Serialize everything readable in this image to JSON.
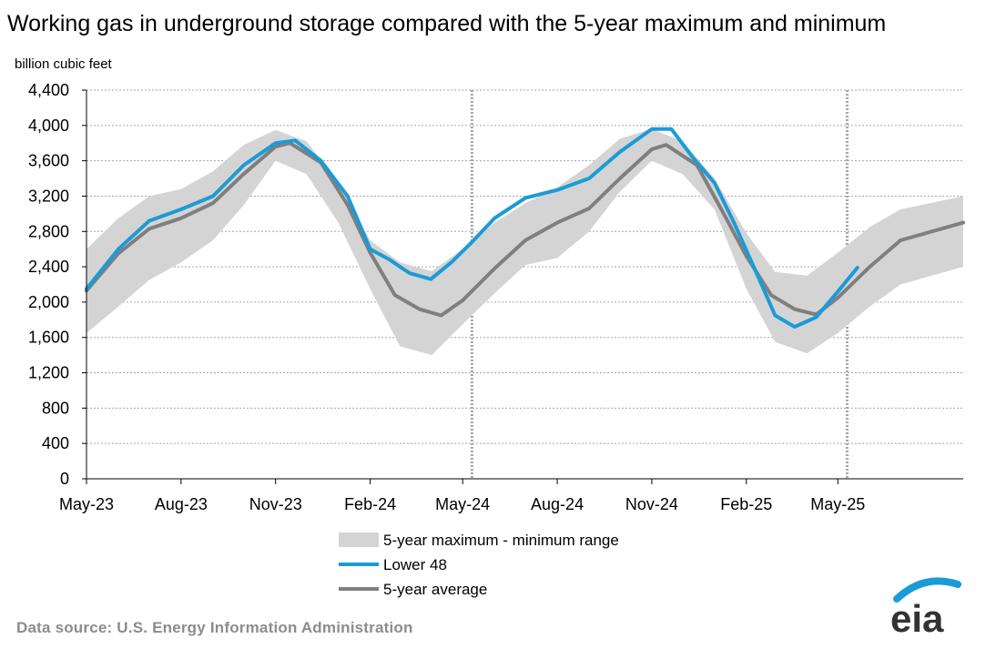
{
  "chart_data": {
    "type": "line",
    "title": "Working gas in underground storage compared with the 5-year maximum and minimum",
    "ylabel": "billion cubic feet",
    "xlabel": "",
    "ylim": [
      0,
      4400
    ],
    "y_ticks": [
      0,
      400,
      800,
      1200,
      1600,
      2000,
      2400,
      2800,
      3200,
      3600,
      4000,
      4400
    ],
    "y_tick_labels": [
      "0",
      "400",
      "800",
      "1,200",
      "1,600",
      "2,000",
      "2,400",
      "2,800",
      "3,200",
      "3,600",
      "4,000",
      "4,400"
    ],
    "x_range": [
      "2023-05-01",
      "2025-08-31"
    ],
    "x_tick_dates": [
      "2023-05-01",
      "2023-08-01",
      "2023-11-01",
      "2024-02-01",
      "2024-05-01",
      "2024-08-01",
      "2024-11-01",
      "2025-02-01",
      "2025-05-01"
    ],
    "x_tick_labels": [
      "May-23",
      "Aug-23",
      "Nov-23",
      "Feb-24",
      "May-24",
      "Aug-24",
      "Nov-24",
      "Feb-25",
      "May-25"
    ],
    "year_markers": [
      "2024-05-10",
      "2025-05-10"
    ],
    "grid": true,
    "legend_position": "bottom-center",
    "series": [
      {
        "name": "5-year maximum - minimum range",
        "type": "band",
        "color": "#d4d4d4",
        "x": [
          "2023-05-01",
          "2023-06-01",
          "2023-07-01",
          "2023-08-01",
          "2023-09-01",
          "2023-10-01",
          "2023-11-01",
          "2023-12-01",
          "2024-01-01",
          "2024-02-01",
          "2024-03-01",
          "2024-04-01",
          "2024-05-01",
          "2024-06-01",
          "2024-07-01",
          "2024-08-01",
          "2024-09-01",
          "2024-10-01",
          "2024-11-01",
          "2024-12-01",
          "2025-01-01",
          "2025-02-01",
          "2025-03-01",
          "2025-04-01",
          "2025-05-01",
          "2025-06-01",
          "2025-07-01",
          "2025-08-31"
        ],
        "upper": [
          2600,
          2950,
          3200,
          3280,
          3480,
          3780,
          3950,
          3820,
          3350,
          2700,
          2450,
          2350,
          2600,
          2900,
          3120,
          3300,
          3550,
          3850,
          3960,
          3820,
          3400,
          2780,
          2340,
          2300,
          2560,
          2850,
          3050,
          3200
        ],
        "lower": [
          1650,
          1950,
          2250,
          2450,
          2700,
          3100,
          3600,
          3450,
          2900,
          2150,
          1500,
          1400,
          1750,
          2100,
          2420,
          2500,
          2800,
          3250,
          3600,
          3450,
          3050,
          2150,
          1550,
          1420,
          1650,
          1950,
          2200,
          2400
        ]
      },
      {
        "name": "Lower 48",
        "type": "line",
        "color": "#1b9bd7",
        "x": [
          "2023-05-01",
          "2023-06-01",
          "2023-07-01",
          "2023-08-01",
          "2023-09-01",
          "2023-10-01",
          "2023-11-01",
          "2023-11-20",
          "2023-12-15",
          "2024-01-10",
          "2024-02-01",
          "2024-02-20",
          "2024-03-10",
          "2024-03-31",
          "2024-04-20",
          "2024-05-10",
          "2024-06-01",
          "2024-07-01",
          "2024-08-01",
          "2024-09-01",
          "2024-10-01",
          "2024-11-01",
          "2024-11-20",
          "2024-12-10",
          "2025-01-01",
          "2025-01-20",
          "2025-02-10",
          "2025-03-01",
          "2025-03-20",
          "2025-04-10",
          "2025-05-01",
          "2025-05-20"
        ],
        "y": [
          2150,
          2600,
          2920,
          3050,
          3200,
          3550,
          3800,
          3830,
          3600,
          3200,
          2600,
          2480,
          2330,
          2260,
          2450,
          2680,
          2950,
          3180,
          3270,
          3400,
          3700,
          3960,
          3960,
          3650,
          3350,
          2900,
          2350,
          1850,
          1720,
          1830,
          2120,
          2390
        ]
      },
      {
        "name": "5-year average",
        "type": "line",
        "color": "#7f7f7f",
        "x": [
          "2023-05-01",
          "2023-06-01",
          "2023-07-01",
          "2023-08-01",
          "2023-09-01",
          "2023-10-01",
          "2023-11-01",
          "2023-11-15",
          "2023-12-15",
          "2024-01-10",
          "2024-02-01",
          "2024-02-25",
          "2024-03-20",
          "2024-04-10",
          "2024-05-01",
          "2024-06-01",
          "2024-07-01",
          "2024-08-01",
          "2024-09-01",
          "2024-10-01",
          "2024-11-01",
          "2024-11-15",
          "2024-12-15",
          "2025-01-10",
          "2025-02-01",
          "2025-02-25",
          "2025-03-20",
          "2025-04-10",
          "2025-05-01",
          "2025-06-01",
          "2025-07-01",
          "2025-08-31"
        ],
        "y": [
          2130,
          2550,
          2830,
          2950,
          3120,
          3450,
          3760,
          3800,
          3580,
          3100,
          2560,
          2080,
          1920,
          1850,
          2020,
          2380,
          2700,
          2900,
          3060,
          3400,
          3730,
          3780,
          3550,
          3000,
          2520,
          2080,
          1920,
          1860,
          2050,
          2400,
          2700,
          2900
        ]
      }
    ]
  },
  "source_note": "Data source:  U.S. Energy Information Administration",
  "logo_text": "eia"
}
